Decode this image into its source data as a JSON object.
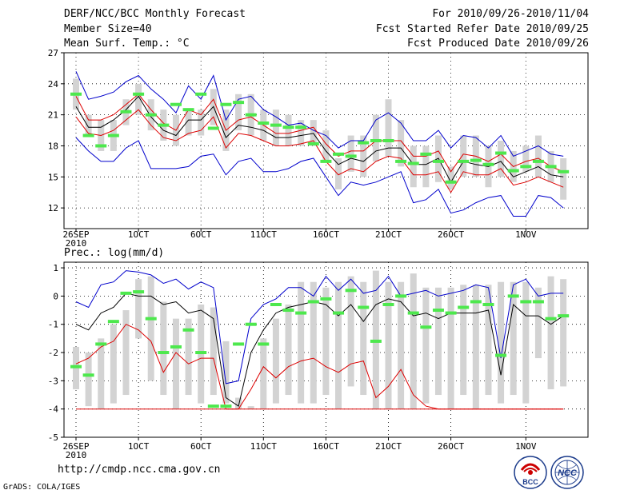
{
  "header": {
    "title": "DERF/NCC/BCC Monthly Forecast",
    "member_size": "Member Size=40",
    "variable": "Mean Surf. Temp.: °C",
    "period": "For 2010/09/26-2010/11/04",
    "fcst_start": "Fcst Started Refer Date 2010/09/25",
    "fcst_produced": "Fcst Produced Date 2010/09/26"
  },
  "precip_label": "Prec.: log(mm/d)",
  "footer_url": "http://cmdp.ncc.cma.gov.cn",
  "credit": "GrADS: COLA/IGES",
  "logos": {
    "left": "BCC",
    "right": "NCC"
  },
  "colors": {
    "max": "#0000cc",
    "spread": "#dd0000",
    "mean": "#000000",
    "obs": "#4de84d",
    "box": "#d3d3d3"
  },
  "chart_data": [
    {
      "type": "line",
      "name": "temperature",
      "ylabel": "Mean Surf. Temp.: °C",
      "ylim": [
        10,
        27
      ],
      "yticks": [
        "12",
        "15",
        "18",
        "21",
        "24",
        "27"
      ],
      "ytick_values": [
        12,
        15,
        18,
        21,
        24,
        27
      ],
      "xticks": [
        "26SEP\n2010",
        "1OCT",
        "6OCT",
        "11OCT",
        "16OCT",
        "21OCT",
        "26OCT",
        "1NOV"
      ],
      "xtick_days": [
        0,
        5,
        10,
        15,
        20,
        25,
        30,
        36
      ],
      "days": 39,
      "series": [
        {
          "name": "max",
          "color": "#0000cc",
          "values": [
            25.2,
            22.5,
            22.8,
            23.2,
            24.2,
            24.8,
            23.5,
            22.5,
            21.2,
            23.8,
            22.5,
            24.8,
            20.5,
            22.5,
            22.8,
            21.5,
            20.8,
            20.0,
            20.2,
            19.5,
            19.0,
            17.8,
            18.5,
            18.5,
            20.5,
            21.2,
            20.2,
            18.5,
            18.5,
            19.5,
            17.8,
            19.0,
            18.8,
            17.8,
            19.0,
            17.0,
            17.5,
            18.0,
            17.2,
            17.0
          ]
        },
        {
          "name": "upper",
          "color": "#dd0000",
          "values": [
            22.8,
            20.5,
            20.5,
            21.0,
            22.0,
            23.0,
            21.5,
            20.2,
            19.5,
            21.5,
            21.0,
            22.5,
            19.5,
            20.5,
            20.8,
            20.0,
            19.2,
            19.2,
            19.5,
            19.8,
            18.2,
            17.0,
            17.5,
            17.5,
            18.5,
            18.5,
            18.5,
            17.0,
            17.0,
            17.5,
            15.5,
            17.2,
            17.0,
            16.5,
            17.2,
            16.0,
            16.5,
            16.8,
            16.0,
            15.5
          ]
        },
        {
          "name": "mean",
          "color": "#000000",
          "values": [
            21.8,
            19.8,
            19.8,
            20.5,
            21.5,
            22.8,
            20.8,
            19.5,
            19.0,
            20.5,
            20.5,
            21.8,
            18.8,
            20.0,
            19.8,
            19.5,
            18.8,
            18.8,
            19.0,
            19.2,
            17.5,
            16.2,
            16.8,
            16.5,
            17.5,
            17.8,
            17.8,
            16.2,
            16.2,
            16.8,
            14.5,
            16.5,
            16.2,
            16.0,
            16.5,
            15.0,
            15.5,
            16.0,
            15.2,
            15.0
          ]
        },
        {
          "name": "lower",
          "color": "#dd0000",
          "values": [
            20.8,
            19.2,
            19.0,
            19.5,
            20.5,
            21.5,
            20.0,
            18.8,
            18.5,
            19.2,
            19.5,
            20.8,
            17.8,
            19.2,
            19.0,
            18.5,
            18.0,
            18.0,
            18.2,
            18.5,
            16.5,
            15.2,
            15.8,
            15.5,
            16.5,
            17.0,
            16.8,
            15.2,
            15.2,
            15.5,
            13.5,
            15.5,
            15.2,
            15.2,
            15.8,
            14.2,
            14.5,
            15.0,
            14.5,
            14.0
          ]
        },
        {
          "name": "min",
          "color": "#0000cc",
          "values": [
            18.8,
            17.5,
            16.5,
            16.5,
            17.8,
            18.5,
            15.8,
            15.8,
            15.8,
            16.0,
            17.0,
            17.2,
            15.2,
            16.5,
            16.8,
            15.5,
            15.5,
            15.8,
            16.5,
            16.8,
            15.0,
            13.2,
            14.5,
            14.2,
            14.5,
            15.0,
            15.5,
            12.5,
            12.8,
            13.8,
            11.5,
            11.8,
            12.5,
            13.0,
            13.2,
            11.2,
            11.2,
            13.2,
            13.0,
            12.0
          ]
        }
      ],
      "boxes": [
        [
          21.5,
          24.5
        ],
        [
          19.0,
          21.0
        ],
        [
          17.5,
          20.5
        ],
        [
          17.5,
          20.5
        ],
        [
          20.0,
          22.5
        ],
        [
          21.0,
          24.0
        ],
        [
          19.5,
          22.5
        ],
        [
          18.5,
          21.5
        ],
        [
          18.0,
          21.0
        ],
        [
          19.0,
          21.5
        ],
        [
          19.0,
          21.5
        ],
        [
          20.0,
          23.5
        ],
        [
          17.5,
          21.5
        ],
        [
          19.5,
          23.0
        ],
        [
          19.0,
          23.0
        ],
        [
          18.5,
          21.5
        ],
        [
          18.0,
          21.5
        ],
        [
          18.0,
          21.0
        ],
        [
          18.0,
          20.5
        ],
        [
          18.0,
          20.5
        ],
        [
          16.5,
          19.5
        ],
        [
          13.8,
          16.8
        ],
        [
          15.5,
          19.0
        ],
        [
          15.0,
          19.0
        ],
        [
          16.5,
          21.0
        ],
        [
          17.0,
          22.5
        ],
        [
          16.0,
          20.5
        ],
        [
          14.0,
          18.0
        ],
        [
          14.0,
          18.0
        ],
        [
          14.5,
          19.0
        ],
        [
          13.8,
          16.0
        ],
        [
          15.0,
          19.0
        ],
        [
          15.0,
          19.0
        ],
        [
          14.0,
          18.0
        ],
        [
          15.0,
          18.5
        ],
        [
          14.5,
          17.5
        ],
        [
          15.5,
          18.0
        ],
        [
          15.0,
          19.0
        ],
        [
          14.5,
          17.5
        ],
        [
          12.8,
          16.8
        ]
      ],
      "observed": [
        23.0,
        19.0,
        18.0,
        19.0,
        21.3,
        23.0,
        21.0,
        20.0,
        22.0,
        21.5,
        23.0,
        19.7,
        22.0,
        22.2,
        21.0,
        20.2,
        20.0,
        19.8,
        19.8,
        18.2,
        16.5,
        17.2,
        17.0,
        18.3,
        18.5,
        18.5,
        16.5,
        16.3,
        17.2,
        16.5,
        14.5,
        16.5,
        16.6,
        16.2,
        17.3,
        15.6,
        16.0,
        16.5,
        16.0,
        15.5
      ]
    },
    {
      "type": "line",
      "name": "precipitation",
      "ylabel": "Prec.: log(mm/d)",
      "ylim": [
        -5,
        1.2
      ],
      "yticks": [
        "-5",
        "-4",
        "-3",
        "-2",
        "-1",
        "0",
        "1"
      ],
      "ytick_values": [
        -5,
        -4,
        -3,
        -2,
        -1,
        0,
        1
      ],
      "xticks": [
        "26SEP\n2010",
        "1OCT",
        "6OCT",
        "11OCT",
        "16OCT",
        "21OCT",
        "26OCT",
        "1NOV"
      ],
      "xtick_days": [
        0,
        5,
        10,
        15,
        20,
        25,
        30,
        36
      ],
      "days": 39,
      "series": [
        {
          "name": "max",
          "color": "#0000cc",
          "values": [
            -0.2,
            -0.4,
            0.4,
            0.5,
            0.9,
            0.85,
            0.75,
            0.45,
            0.6,
            0.25,
            0.5,
            0.3,
            -3.1,
            -3.0,
            -0.8,
            -0.3,
            -0.1,
            0.3,
            0.3,
            0.0,
            0.7,
            0.2,
            0.6,
            0.1,
            0.2,
            0.7,
            0.0,
            0.1,
            0.2,
            0.0,
            0.1,
            0.2,
            0.4,
            0.3,
            -2.2,
            0.4,
            0.6,
            0.0,
            0.1,
            0.1
          ]
        },
        {
          "name": "mean",
          "color": "#000000",
          "values": [
            -1.0,
            -1.2,
            -0.6,
            -0.4,
            0.1,
            0.0,
            0.0,
            -0.3,
            -0.2,
            -0.6,
            -0.5,
            -0.8,
            -3.6,
            -3.9,
            -2.0,
            -1.2,
            -0.6,
            -0.4,
            -0.3,
            -0.2,
            -0.3,
            -0.7,
            -0.3,
            -0.9,
            -0.3,
            -0.1,
            -0.2,
            -0.7,
            -0.6,
            -0.8,
            -0.6,
            -0.6,
            -0.6,
            -0.5,
            -2.8,
            -0.3,
            -0.7,
            -0.7,
            -1.0,
            -0.7
          ]
        },
        {
          "name": "lower",
          "color": "#dd0000",
          "values": [
            -2.4,
            -2.2,
            -1.8,
            -1.6,
            -1.0,
            -1.2,
            -1.6,
            -2.7,
            -2.0,
            -2.4,
            -2.2,
            -2.2,
            -4.0,
            -4.0,
            -3.3,
            -2.5,
            -2.9,
            -2.5,
            -2.3,
            -2.2,
            -2.5,
            -2.7,
            -2.4,
            -2.3,
            -3.6,
            -3.2,
            -2.6,
            -3.5,
            -3.9,
            -4.0,
            -4.0,
            -4.0,
            -4.0,
            -4.0,
            -4.0,
            -4.0,
            -4.0,
            -4.0,
            -4.0,
            -4.0
          ]
        },
        {
          "name": "floor",
          "color": "#dd0000",
          "values": [
            -4.0,
            -4.0,
            -4.0,
            -4.0,
            -4.0,
            -4.0,
            -4.0,
            -4.0,
            -4.0,
            -4.0,
            -4.0,
            -4.0,
            -4.0,
            -4.0,
            -4.0,
            -4.0,
            -4.0,
            -4.0,
            -4.0,
            -4.0,
            -4.0,
            -4.0,
            -4.0,
            -4.0,
            -4.0,
            -4.0,
            -4.0,
            -4.0,
            -4.0,
            -4.0,
            -4.0,
            -4.0,
            -4.0,
            -4.0,
            -4.0,
            -4.0,
            -4.0,
            -4.0,
            -4.0,
            -4.0
          ]
        }
      ],
      "boxes": [
        [
          -3.3,
          -1.8
        ],
        [
          -3.9,
          -2.0
        ],
        [
          -4.0,
          -1.5
        ],
        [
          -3.8,
          -1.0
        ],
        [
          -3.5,
          -0.5
        ],
        [
          -1.5,
          0.6
        ],
        [
          -3.0,
          0.7
        ],
        [
          -3.5,
          -0.2
        ],
        [
          -4.0,
          -0.8
        ],
        [
          -3.5,
          -0.8
        ],
        [
          -3.8,
          -0.3
        ],
        [
          -3.5,
          -0.4
        ],
        [
          -3.8,
          -1.6
        ],
        [
          -4.0,
          -3.6
        ],
        [
          -4.0,
          -3.9
        ],
        [
          -4.0,
          -1.5
        ],
        [
          -3.8,
          -0.8
        ],
        [
          -3.5,
          -0.3
        ],
        [
          -3.8,
          0.5
        ],
        [
          -3.8,
          0.5
        ],
        [
          -3.5,
          0.3
        ],
        [
          -4.0,
          0.5
        ],
        [
          -3.2,
          0.7
        ],
        [
          -3.5,
          0.5
        ],
        [
          -4.0,
          0.9
        ],
        [
          -4.0,
          0.5
        ],
        [
          -4.0,
          0.5
        ],
        [
          -4.0,
          0.8
        ],
        [
          -3.8,
          0.3
        ],
        [
          -3.5,
          0.3
        ],
        [
          -4.0,
          0.3
        ],
        [
          -3.5,
          0.4
        ],
        [
          -4.0,
          0.4
        ],
        [
          -3.5,
          0.4
        ],
        [
          -3.8,
          0.5
        ],
        [
          -3.5,
          0.5
        ],
        [
          -3.8,
          0.5
        ],
        [
          -2.2,
          0.3
        ],
        [
          -3.3,
          0.7
        ],
        [
          -3.2,
          0.6
        ]
      ],
      "observed": [
        -2.5,
        -2.8,
        -1.7,
        -0.9,
        0.1,
        0.15,
        -0.8,
        -2.0,
        -1.8,
        -1.2,
        -2.0,
        -3.9,
        -3.9,
        -1.7,
        -1.0,
        -1.7,
        -0.3,
        -0.5,
        -0.6,
        -0.2,
        -0.1,
        -0.6,
        0.2,
        -0.4,
        -1.6,
        -0.3,
        0.0,
        -0.6,
        -1.1,
        -0.5,
        -0.6,
        -0.4,
        -0.2,
        -0.3,
        -2.1,
        0.0,
        -0.2,
        -0.2,
        -0.8,
        -0.7
      ]
    }
  ]
}
